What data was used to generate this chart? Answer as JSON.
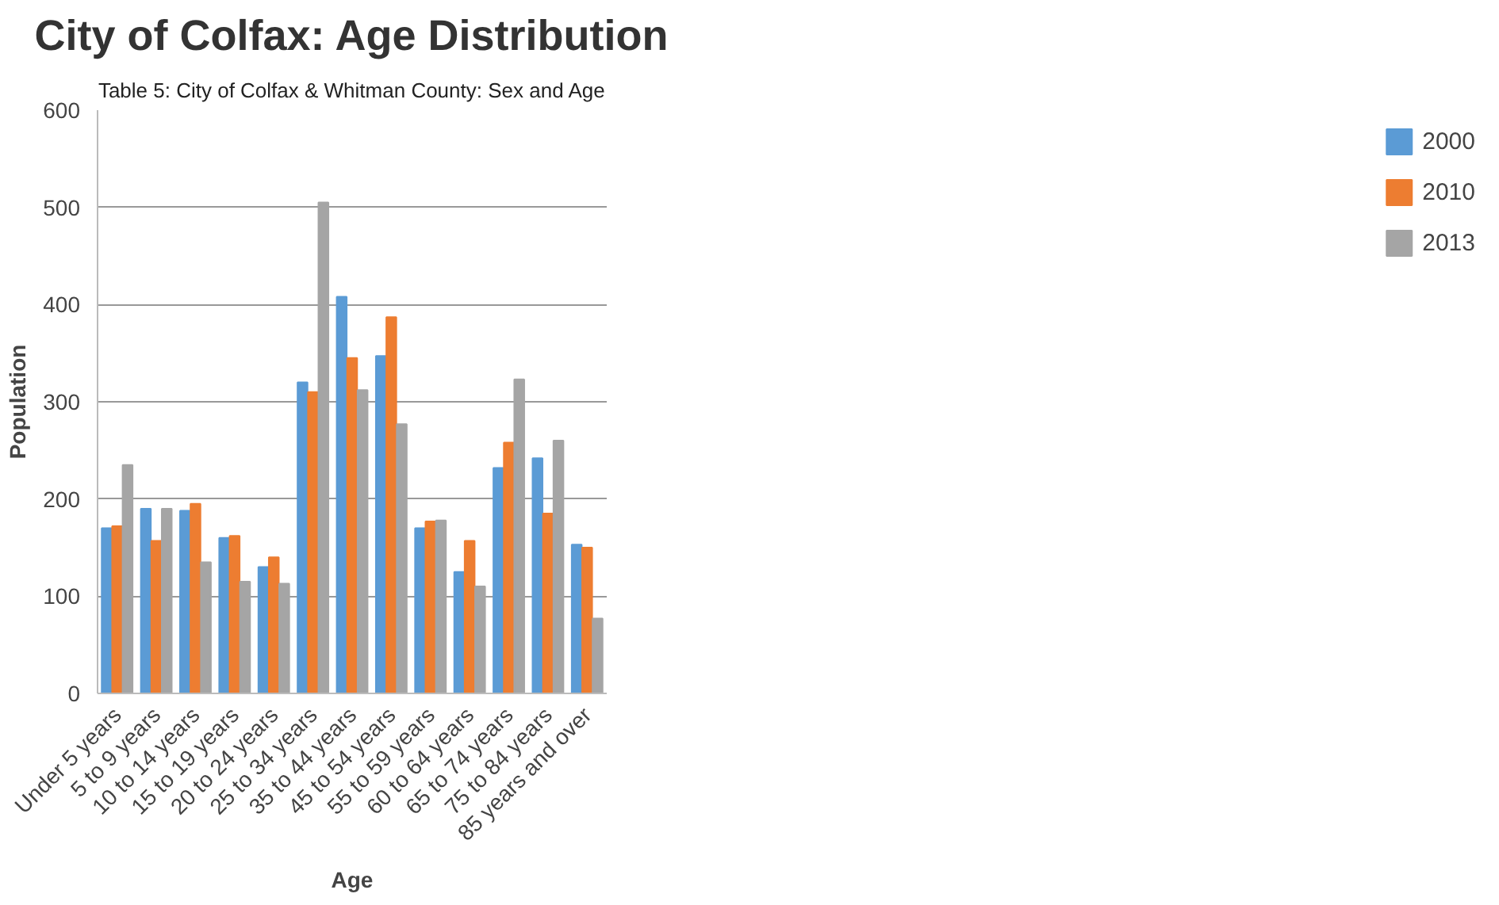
{
  "chart_data": {
    "type": "bar",
    "title": "City of Colfax: Age Distribution",
    "xlabel": "Age",
    "ylabel": "Population",
    "annotations": [
      "Table 5: City of Colfax & Whitman County: Sex and Age"
    ],
    "categories": [
      "Under 5 years",
      "5 to 9 years",
      "10 to 14 years",
      "15 to 19 years",
      "20 to 24 years",
      "25 to 34 years",
      "35 to 44 years",
      "45 to 54 years",
      "55 to 59 years",
      "60 to 64 years",
      "65 to 74 years",
      "75 to 84 years",
      "85 years and over"
    ],
    "series": [
      {
        "name": "2000",
        "color": "#5b9bd5",
        "values": [
          170,
          190,
          188,
          160,
          130,
          320,
          408,
          347,
          170,
          125,
          232,
          242,
          153
        ]
      },
      {
        "name": "2010",
        "color": "#ed7d31",
        "values": [
          172,
          157,
          195,
          162,
          140,
          310,
          345,
          387,
          177,
          157,
          258,
          185,
          150
        ]
      },
      {
        "name": "2013",
        "color": "#a5a5a5",
        "values": [
          235,
          190,
          135,
          115,
          113,
          505,
          312,
          277,
          178,
          110,
          323,
          260,
          77
        ]
      }
    ],
    "ylim": [
      0,
      600
    ],
    "yticks": [
      0,
      100,
      200,
      300,
      400,
      500,
      600
    ],
    "grid": "y",
    "legend": "right"
  }
}
